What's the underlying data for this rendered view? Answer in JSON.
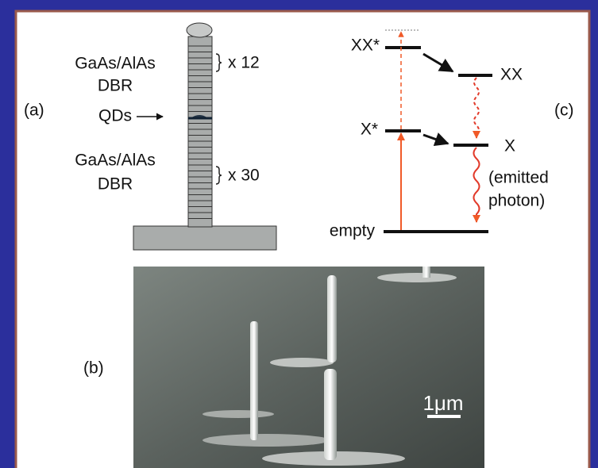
{
  "panel_a": {
    "label": "(a)",
    "top_mirror": {
      "material": "GaAs/AlAs",
      "name": "DBR",
      "repeats": "x 12"
    },
    "qd_label": "QDs",
    "bottom_mirror": {
      "material": "GaAs/AlAs",
      "name": "DBR",
      "repeats": "x 30"
    }
  },
  "panel_b": {
    "label": "(b)",
    "scale_bar": "1μm"
  },
  "panel_c": {
    "label": "(c)",
    "levels": {
      "biexciton_excited": "XX*",
      "biexciton": "XX",
      "exciton_excited": "X*",
      "exciton": "X",
      "ground": "empty"
    },
    "photon_note": [
      "(emitted",
      "photon)"
    ]
  }
}
